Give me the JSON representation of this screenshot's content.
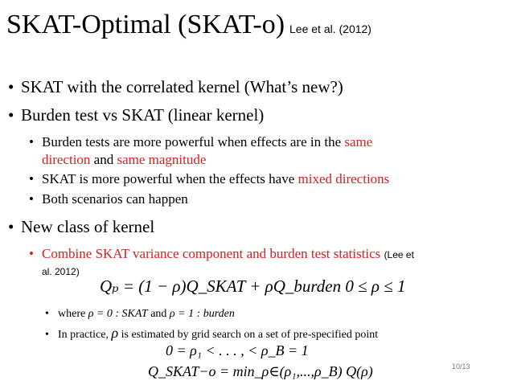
{
  "slide": {
    "title": "SKAT-Optimal (SKAT-o)",
    "title_citation": "Lee et al. (2012)",
    "bullets": {
      "b1": "SKAT with the correlated kernel (What’s new?)",
      "b2": "Burden test vs SKAT (linear kernel)",
      "b2_sub1_a": "Burden tests are more powerful when effects are in the ",
      "b2_sub1_b": "same",
      "b2_sub1_c": "direction",
      "b2_sub1_d": " and ",
      "b2_sub1_e": "same magnitude",
      "b2_sub2_a": "SKAT is more powerful when the effects have ",
      "b2_sub2_b": "mixed directions",
      "b2_sub3": "Both scenarios can happen",
      "b3": "New class of kernel",
      "b3_sub1": "Combine SKAT variance component and burden test statistics",
      "b3_sub1_cite_a": "(Lee et",
      "b3_sub1_cite_b": "al. 2012)",
      "equation_q": "Qₚ = (1 − ρ)Q_SKAT + ρQ_burden    0 ≤ ρ ≤ 1",
      "where_a": "where",
      "where_b": "ρ = 0 :  SKAT",
      "where_c": "and",
      "where_d": "ρ = 1 :  burden",
      "practice_a": "In practice,",
      "practice_rho": "ρ",
      "practice_b": "is estimated by grid search on a set of pre-specified point",
      "equation_grid": "0 = ρ₁ < . . . , < ρ_B = 1",
      "equation_min": "Q_SKAT−o = min_ρ∈(ρ₁,...,ρ_B) Q(ρ)"
    },
    "page_number": "10/13",
    "colors": {
      "accent_red": "#d41f1f"
    }
  }
}
